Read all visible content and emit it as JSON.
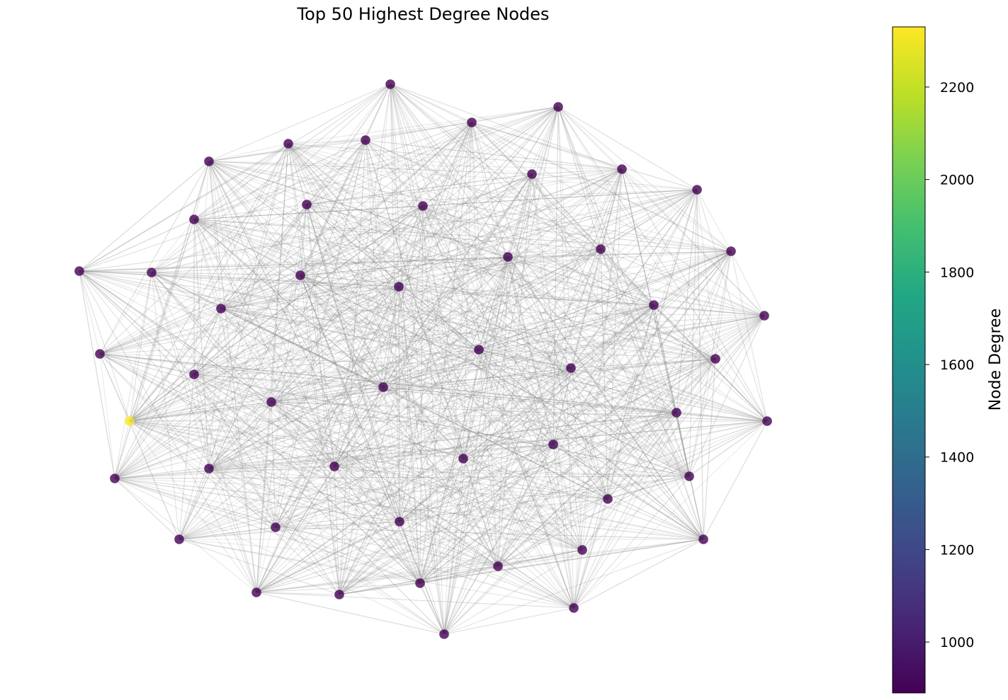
{
  "title": "Top 50 Highest Degree Nodes",
  "colorbar": {
    "label": "Node Degree",
    "min": 890,
    "max": 2330,
    "ticks": [
      1000,
      1200,
      1400,
      1600,
      1800,
      2000,
      2200
    ],
    "tick_labels": [
      "1000",
      "1200",
      "1400",
      "1600",
      "1800",
      "2000",
      "2200"
    ],
    "colormap": "viridis"
  },
  "graph": {
    "node_count": 50,
    "node_color_low": "#440154",
    "node_color_high": "#fde725",
    "edge_color": "#808080",
    "highest_degree_node_degree": 2330,
    "typical_node_degree": 950
  }
}
